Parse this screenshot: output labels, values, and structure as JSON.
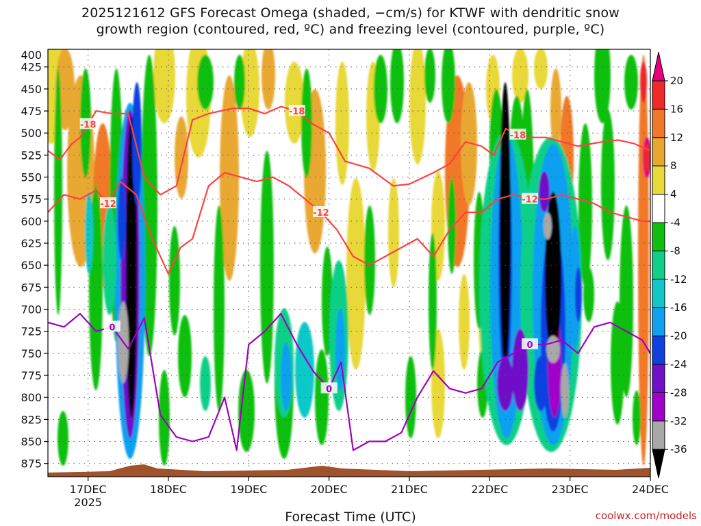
{
  "title_line1": "2025121612 GFS Forecast Omega (shaded, −cm/s) for KTWF with dendritic snow",
  "title_line2": "growth region (contoured, red, ºC) and freezing level (contoured, purple, ºC)",
  "xlabel": "Forecast Time (UTC)",
  "credit": "coolwx.com/models",
  "chart_data": {
    "type": "heatmap",
    "ylim": [
      405,
      890
    ],
    "y_ticks": [
      400,
      425,
      450,
      475,
      500,
      525,
      550,
      575,
      600,
      625,
      650,
      675,
      700,
      725,
      750,
      775,
      800,
      825,
      850,
      875
    ],
    "x_ticks": [
      {
        "day": 17,
        "label": "17DEC",
        "sub": "2025"
      },
      {
        "day": 18,
        "label": "18DEC"
      },
      {
        "day": 19,
        "label": "19DEC"
      },
      {
        "day": 20,
        "label": "20DEC"
      },
      {
        "day": 21,
        "label": "21DEC"
      },
      {
        "day": 22,
        "label": "22DEC"
      },
      {
        "day": 23,
        "label": "23DEC"
      },
      {
        "day": 24,
        "label": "24DEC"
      }
    ],
    "xlim": [
      16.5,
      24.0
    ],
    "grid": true,
    "colorbar": {
      "labels": [
        "20",
        "16",
        "12",
        "8",
        "4",
        "-4",
        "-8",
        "-12",
        "-16",
        "-20",
        "-24",
        "-28",
        "-32",
        "-36"
      ],
      "colors": [
        "#e8007a",
        "#f02828",
        "#f07828",
        "#e8a830",
        "#e8d838",
        "#ffffff",
        "#10c010",
        "#10d088",
        "#10c8c8",
        "#10a0f0",
        "#1040e0",
        "#7010c8",
        "#a000c8",
        "#a8a8a8",
        "#000000"
      ]
    },
    "contours": {
      "dgz_minus18": {
        "label": "-18",
        "color": "#ff4040",
        "x": [
          16.5,
          16.65,
          16.8,
          16.9,
          17.0,
          17.1,
          17.3,
          17.5,
          17.7,
          17.9,
          18.1,
          18.3,
          18.5,
          18.8,
          19.0,
          19.2,
          19.4,
          19.6,
          19.8,
          20.0,
          20.2,
          20.5,
          20.8,
          21.0,
          21.3,
          21.5,
          21.7,
          21.9,
          22.05,
          22.2,
          22.35,
          22.5,
          22.7,
          22.9,
          23.1,
          23.4,
          23.6,
          23.8,
          24.0
        ],
        "y": [
          520,
          530,
          512,
          505,
          490,
          475,
          478,
          478,
          550,
          570,
          560,
          485,
          478,
          472,
          472,
          478,
          470,
          475,
          490,
          500,
          532,
          540,
          560,
          558,
          545,
          535,
          510,
          515,
          525,
          495,
          502,
          505,
          505,
          510,
          515,
          510,
          508,
          512,
          520
        ]
      },
      "dgz_minus12": {
        "label": "-12",
        "color": "#ff4040",
        "x": [
          16.5,
          16.7,
          16.9,
          17.1,
          17.25,
          17.4,
          17.6,
          17.8,
          18.0,
          18.15,
          18.3,
          18.5,
          18.7,
          18.9,
          19.1,
          19.3,
          19.5,
          19.7,
          19.9,
          20.1,
          20.3,
          20.5,
          20.7,
          20.9,
          21.1,
          21.3,
          21.5,
          21.7,
          21.9,
          22.1,
          22.3,
          22.5,
          22.7,
          22.9,
          23.1,
          23.3,
          23.5,
          23.7,
          23.9,
          24.0
        ],
        "y": [
          590,
          570,
          575,
          565,
          580,
          555,
          570,
          620,
          660,
          630,
          620,
          560,
          545,
          550,
          555,
          550,
          560,
          575,
          590,
          610,
          640,
          650,
          640,
          630,
          620,
          640,
          610,
          590,
          590,
          575,
          570,
          575,
          575,
          570,
          575,
          580,
          590,
          595,
          600,
          600
        ]
      },
      "freezing_level_0": {
        "label": "0",
        "color": "#a000c0",
        "x": [
          16.5,
          16.7,
          16.9,
          17.1,
          17.3,
          17.5,
          17.7,
          17.9,
          18.1,
          18.3,
          18.5,
          18.7,
          18.85,
          19.0,
          19.2,
          19.4,
          19.6,
          19.8,
          20.0,
          20.15,
          20.3,
          20.5,
          20.7,
          20.9,
          21.1,
          21.3,
          21.5,
          21.7,
          21.9,
          22.1,
          22.3,
          22.5,
          22.7,
          22.9,
          23.1,
          23.3,
          23.5,
          23.7,
          23.9,
          24.0
        ],
        "y": [
          715,
          720,
          705,
          725,
          720,
          745,
          710,
          820,
          845,
          850,
          845,
          800,
          860,
          740,
          725,
          705,
          740,
          770,
          790,
          760,
          860,
          850,
          850,
          840,
          800,
          770,
          790,
          795,
          790,
          760,
          750,
          740,
          740,
          735,
          750,
          720,
          715,
          725,
          735,
          750
        ]
      }
    }
  }
}
